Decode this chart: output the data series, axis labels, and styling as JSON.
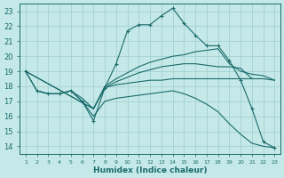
{
  "xlabel": "Humidex (Indice chaleur)",
  "bg_color": "#c5e8e8",
  "grid_color": "#9dcece",
  "line_color": "#1a6b6b",
  "xlim": [
    0.5,
    23.5
  ],
  "ylim": [
    13.5,
    23.5
  ],
  "yticks": [
    14,
    15,
    16,
    17,
    18,
    19,
    20,
    21,
    22,
    23
  ],
  "xticks": [
    1,
    2,
    3,
    4,
    5,
    6,
    7,
    8,
    9,
    10,
    11,
    12,
    13,
    14,
    15,
    16,
    17,
    18,
    19,
    20,
    21,
    22,
    23
  ],
  "series": [
    {
      "x": [
        1,
        2,
        3,
        4,
        5,
        6,
        7,
        8,
        9,
        10,
        11,
        12,
        13,
        14,
        15,
        16,
        17,
        18,
        19,
        20,
        21,
        22,
        23
      ],
      "y": [
        19.0,
        17.7,
        17.5,
        17.5,
        17.7,
        17.0,
        15.7,
        17.9,
        19.5,
        21.7,
        22.1,
        22.1,
        22.7,
        23.2,
        22.2,
        21.4,
        20.7,
        20.7,
        19.7,
        18.4,
        16.5,
        14.3,
        13.9
      ],
      "marker": "+"
    },
    {
      "x": [
        1,
        7,
        8,
        9,
        10,
        11,
        12,
        13,
        14,
        15,
        16,
        17,
        18,
        19,
        20,
        21,
        22,
        23
      ],
      "y": [
        19.0,
        16.5,
        17.9,
        18.3,
        18.6,
        18.9,
        19.1,
        19.3,
        19.4,
        19.5,
        19.5,
        19.4,
        19.3,
        19.3,
        19.2,
        18.5,
        18.5,
        18.4
      ],
      "marker": null
    },
    {
      "x": [
        1,
        7,
        8,
        9,
        10,
        11,
        12,
        13,
        14,
        15,
        16,
        17,
        18,
        19,
        20,
        21,
        22,
        23
      ],
      "y": [
        19.0,
        16.5,
        18.0,
        18.5,
        18.9,
        19.3,
        19.6,
        19.8,
        20.0,
        20.1,
        20.3,
        20.4,
        20.5,
        19.5,
        19.0,
        18.8,
        18.7,
        18.4
      ],
      "marker": null
    },
    {
      "x": [
        2,
        3,
        4,
        5,
        6,
        7,
        8,
        9,
        10,
        11,
        12,
        13,
        14,
        15,
        16,
        17,
        18,
        19,
        20,
        21
      ],
      "y": [
        17.7,
        17.5,
        17.5,
        17.7,
        17.2,
        16.5,
        17.9,
        18.1,
        18.2,
        18.3,
        18.4,
        18.4,
        18.5,
        18.5,
        18.5,
        18.5,
        18.5,
        18.5,
        18.5,
        18.5
      ],
      "marker": null
    },
    {
      "x": [
        1,
        2,
        3,
        4,
        5,
        6,
        7,
        8,
        9,
        10,
        11,
        12,
        13,
        14,
        15,
        16,
        17,
        18,
        19,
        20,
        21,
        22,
        23
      ],
      "y": [
        19.0,
        17.7,
        17.5,
        17.5,
        17.7,
        17.0,
        16.0,
        17.0,
        17.2,
        17.3,
        17.4,
        17.5,
        17.6,
        17.7,
        17.5,
        17.2,
        16.8,
        16.3,
        15.5,
        14.8,
        14.2,
        14.0,
        13.9
      ],
      "marker": null
    }
  ]
}
